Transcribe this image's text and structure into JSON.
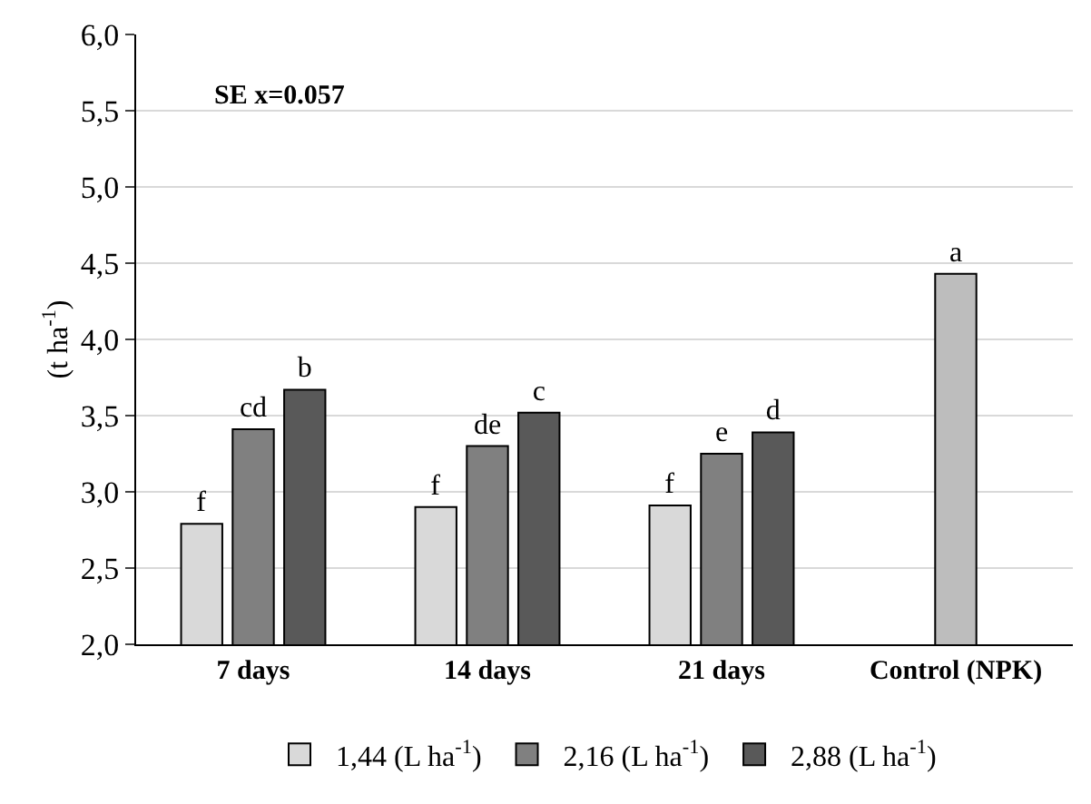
{
  "chart_data": {
    "type": "bar",
    "ylabel": "(t ha$^{-1}$)",
    "categories": [
      "7 days",
      "14 days",
      "21 days",
      "Control (NPK)"
    ],
    "series": [
      {
        "name": "1,44 (L ha$^{-1}$)",
        "color": "#d9d9d9",
        "values": [
          2.79,
          2.9,
          2.91,
          null
        ],
        "value_labels": [
          "f",
          "f",
          "f",
          null
        ]
      },
      {
        "name": "2,16 (L ha$^{-1}$)",
        "color": "#808080",
        "values": [
          3.41,
          3.3,
          3.25,
          null
        ],
        "value_labels": [
          "cd",
          "de",
          "e",
          null
        ]
      },
      {
        "name": "2,88 (L ha$^{-1}$)",
        "color": "#595959",
        "values": [
          3.67,
          3.52,
          3.39,
          null
        ],
        "value_labels": [
          "b",
          "c",
          "d",
          null
        ]
      },
      {
        "color": "#bdbdbd",
        "values": [
          null,
          null,
          null,
          4.43
        ],
        "value_labels": [
          null,
          null,
          null,
          "a"
        ]
      }
    ],
    "ylim": [
      2.0,
      6.0
    ],
    "yticks": [
      {
        "value": 2.0,
        "label": "2,0"
      },
      {
        "value": 2.5,
        "label": "2,5"
      },
      {
        "value": 3.0,
        "label": "3,0"
      },
      {
        "value": 3.5,
        "label": "3,5"
      },
      {
        "value": 4.0,
        "label": "4,0"
      },
      {
        "value": 4.5,
        "label": "4,5"
      },
      {
        "value": 5.0,
        "label": "5,0"
      },
      {
        "value": 5.5,
        "label": "5,5"
      },
      {
        "value": 6.0,
        "label": "6,0"
      }
    ],
    "grid": "y",
    "legend": "bottom",
    "annotations": [
      "SE x=0.057"
    ]
  }
}
